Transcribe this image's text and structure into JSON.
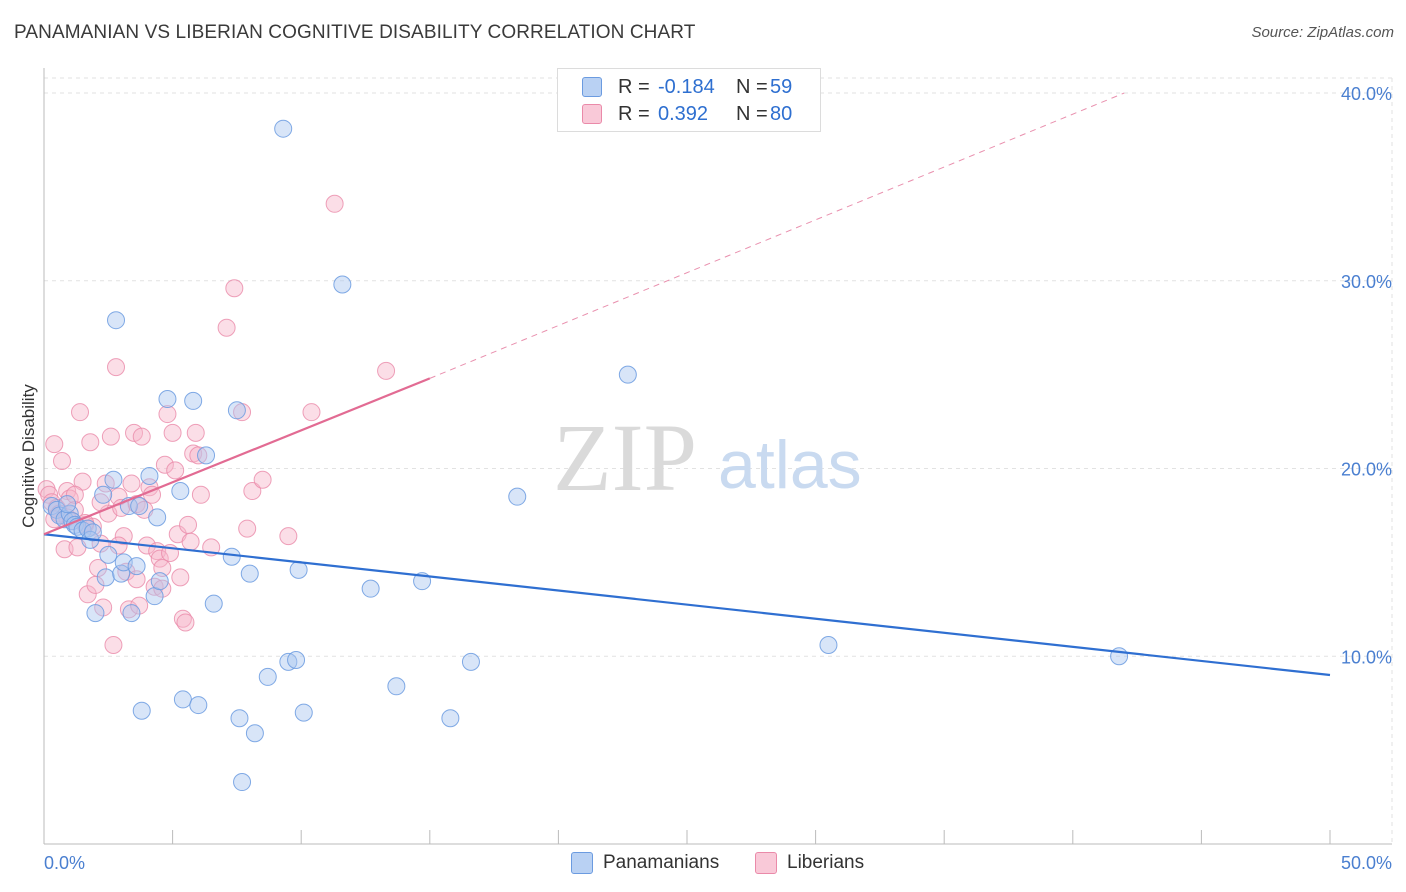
{
  "header": {
    "title": "PANAMANIAN VS LIBERIAN COGNITIVE DISABILITY CORRELATION CHART",
    "source": "Source: ZipAtlas.com"
  },
  "watermark": {
    "zip": "ZIP",
    "atlas": "atlas"
  },
  "legend": {
    "rows": [
      {
        "r_label": "R =",
        "r_value": "-0.184",
        "n_label": "N =",
        "n_value": "59"
      },
      {
        "r_label": "R =",
        "r_value": "0.392",
        "n_label": "N =",
        "n_value": "80"
      }
    ]
  },
  "colors": {
    "blue_fill": "#a9c6f0",
    "blue_stroke": "#6b9be0",
    "blue_line": "#2f6fd1",
    "pink_fill": "#f6b6ca",
    "pink_stroke": "#ea8aa9",
    "pink_line": "#e26b93",
    "grid": "#e2e2e2",
    "axis_text": "#4a7fd0"
  },
  "chart_data": {
    "type": "scatter",
    "title": "PANAMANIAN VS LIBERIAN COGNITIVE DISABILITY CORRELATION CHART",
    "xlabel": "",
    "ylabel": "Cognitive Disability",
    "xlim": [
      0,
      50
    ],
    "ylim": [
      0,
      40.8
    ],
    "x_tick_labels": [
      "0.0%",
      "50.0%"
    ],
    "y_ticks": [
      10,
      20,
      30,
      40
    ],
    "y_tick_labels": [
      "10.0%",
      "20.0%",
      "30.0%",
      "40.0%"
    ],
    "legend_position": "bottom",
    "series": [
      {
        "name": "Panamanians",
        "r": -0.184,
        "n": 59,
        "trend": {
          "x": [
            0,
            50
          ],
          "y": [
            16.5,
            9.0
          ]
        },
        "points": [
          [
            0.3,
            18.0
          ],
          [
            0.5,
            17.8
          ],
          [
            0.6,
            17.5
          ],
          [
            0.8,
            17.3
          ],
          [
            1.0,
            17.6
          ],
          [
            1.1,
            17.2
          ],
          [
            1.2,
            17.0
          ],
          [
            1.3,
            16.9
          ],
          [
            1.5,
            16.7
          ],
          [
            1.7,
            16.8
          ],
          [
            1.8,
            16.2
          ],
          [
            1.9,
            16.6
          ],
          [
            2.0,
            12.3
          ],
          [
            2.3,
            18.6
          ],
          [
            2.4,
            14.2
          ],
          [
            2.5,
            15.4
          ],
          [
            2.7,
            19.4
          ],
          [
            2.8,
            27.9
          ],
          [
            3.0,
            14.4
          ],
          [
            3.1,
            15.0
          ],
          [
            3.3,
            18.0
          ],
          [
            3.4,
            12.3
          ],
          [
            3.6,
            14.8
          ],
          [
            3.7,
            18.0
          ],
          [
            3.8,
            7.1
          ],
          [
            4.1,
            19.6
          ],
          [
            4.3,
            13.2
          ],
          [
            4.4,
            17.4
          ],
          [
            4.5,
            14.0
          ],
          [
            4.8,
            23.7
          ],
          [
            5.3,
            18.8
          ],
          [
            5.4,
            7.7
          ],
          [
            5.8,
            23.6
          ],
          [
            6.0,
            7.4
          ],
          [
            6.3,
            20.7
          ],
          [
            6.6,
            12.8
          ],
          [
            7.3,
            15.3
          ],
          [
            7.5,
            23.1
          ],
          [
            7.6,
            6.7
          ],
          [
            7.7,
            3.3
          ],
          [
            8.0,
            14.4
          ],
          [
            8.2,
            5.9
          ],
          [
            8.7,
            8.9
          ],
          [
            9.3,
            38.1
          ],
          [
            9.5,
            9.7
          ],
          [
            9.8,
            9.8
          ],
          [
            9.9,
            14.6
          ],
          [
            10.1,
            7.0
          ],
          [
            11.6,
            29.8
          ],
          [
            12.7,
            13.6
          ],
          [
            13.7,
            8.4
          ],
          [
            14.7,
            14.0
          ],
          [
            15.8,
            6.7
          ],
          [
            16.6,
            9.7
          ],
          [
            18.4,
            18.5
          ],
          [
            22.7,
            25.0
          ],
          [
            30.5,
            10.6
          ],
          [
            41.8,
            10.0
          ],
          [
            0.9,
            18.1
          ]
        ]
      },
      {
        "name": "Liberians",
        "r": 0.392,
        "n": 80,
        "trend": {
          "x": [
            0,
            15
          ],
          "y": [
            16.5,
            24.8
          ]
        },
        "dashed_trend": {
          "x": [
            15,
            42
          ],
          "y": [
            24.8,
            40.0
          ]
        },
        "points": [
          [
            0.1,
            18.9
          ],
          [
            0.2,
            18.6
          ],
          [
            0.3,
            18.2
          ],
          [
            0.4,
            21.3
          ],
          [
            0.5,
            17.9
          ],
          [
            0.6,
            17.6
          ],
          [
            0.7,
            20.4
          ],
          [
            0.8,
            15.7
          ],
          [
            0.9,
            18.8
          ],
          [
            1.0,
            18.4
          ],
          [
            1.1,
            17.2
          ],
          [
            1.2,
            17.8
          ],
          [
            1.3,
            15.8
          ],
          [
            1.4,
            23.0
          ],
          [
            1.5,
            19.3
          ],
          [
            1.6,
            17.0
          ],
          [
            1.7,
            13.3
          ],
          [
            1.8,
            21.4
          ],
          [
            1.9,
            16.9
          ],
          [
            2.0,
            13.8
          ],
          [
            2.1,
            14.7
          ],
          [
            2.2,
            16.0
          ],
          [
            2.3,
            12.6
          ],
          [
            2.4,
            19.2
          ],
          [
            2.5,
            17.6
          ],
          [
            2.6,
            21.7
          ],
          [
            2.7,
            10.6
          ],
          [
            2.8,
            25.4
          ],
          [
            2.9,
            18.5
          ],
          [
            3.0,
            17.9
          ],
          [
            3.1,
            16.4
          ],
          [
            3.2,
            14.5
          ],
          [
            3.3,
            12.5
          ],
          [
            3.4,
            19.2
          ],
          [
            3.5,
            21.9
          ],
          [
            3.6,
            18.1
          ],
          [
            3.7,
            12.7
          ],
          [
            3.8,
            21.7
          ],
          [
            3.9,
            17.8
          ],
          [
            4.0,
            15.9
          ],
          [
            4.1,
            19.0
          ],
          [
            4.2,
            18.6
          ],
          [
            4.3,
            13.7
          ],
          [
            4.4,
            15.6
          ],
          [
            4.5,
            15.2
          ],
          [
            4.6,
            14.7
          ],
          [
            4.7,
            20.2
          ],
          [
            4.8,
            22.9
          ],
          [
            4.9,
            15.5
          ],
          [
            5.0,
            21.9
          ],
          [
            5.1,
            19.9
          ],
          [
            5.2,
            16.5
          ],
          [
            5.3,
            14.2
          ],
          [
            5.4,
            12.0
          ],
          [
            5.5,
            11.8
          ],
          [
            5.6,
            17.0
          ],
          [
            5.7,
            16.1
          ],
          [
            5.8,
            20.8
          ],
          [
            5.9,
            21.9
          ],
          [
            6.0,
            20.7
          ],
          [
            6.1,
            18.6
          ],
          [
            6.5,
            15.8
          ],
          [
            7.1,
            27.5
          ],
          [
            7.4,
            29.6
          ],
          [
            7.7,
            23.0
          ],
          [
            7.9,
            16.8
          ],
          [
            8.1,
            18.8
          ],
          [
            8.5,
            19.4
          ],
          [
            9.5,
            16.4
          ],
          [
            10.4,
            23.0
          ],
          [
            11.3,
            34.1
          ],
          [
            13.3,
            25.2
          ],
          [
            0.9,
            17.4
          ],
          [
            1.6,
            17.1
          ],
          [
            2.2,
            18.2
          ],
          [
            3.6,
            14.1
          ],
          [
            4.6,
            13.6
          ],
          [
            0.4,
            17.3
          ],
          [
            1.2,
            18.6
          ],
          [
            2.9,
            15.9
          ]
        ]
      }
    ]
  },
  "bottom_legend": {
    "items": [
      {
        "label": "Panamanians"
      },
      {
        "label": "Liberians"
      }
    ]
  }
}
